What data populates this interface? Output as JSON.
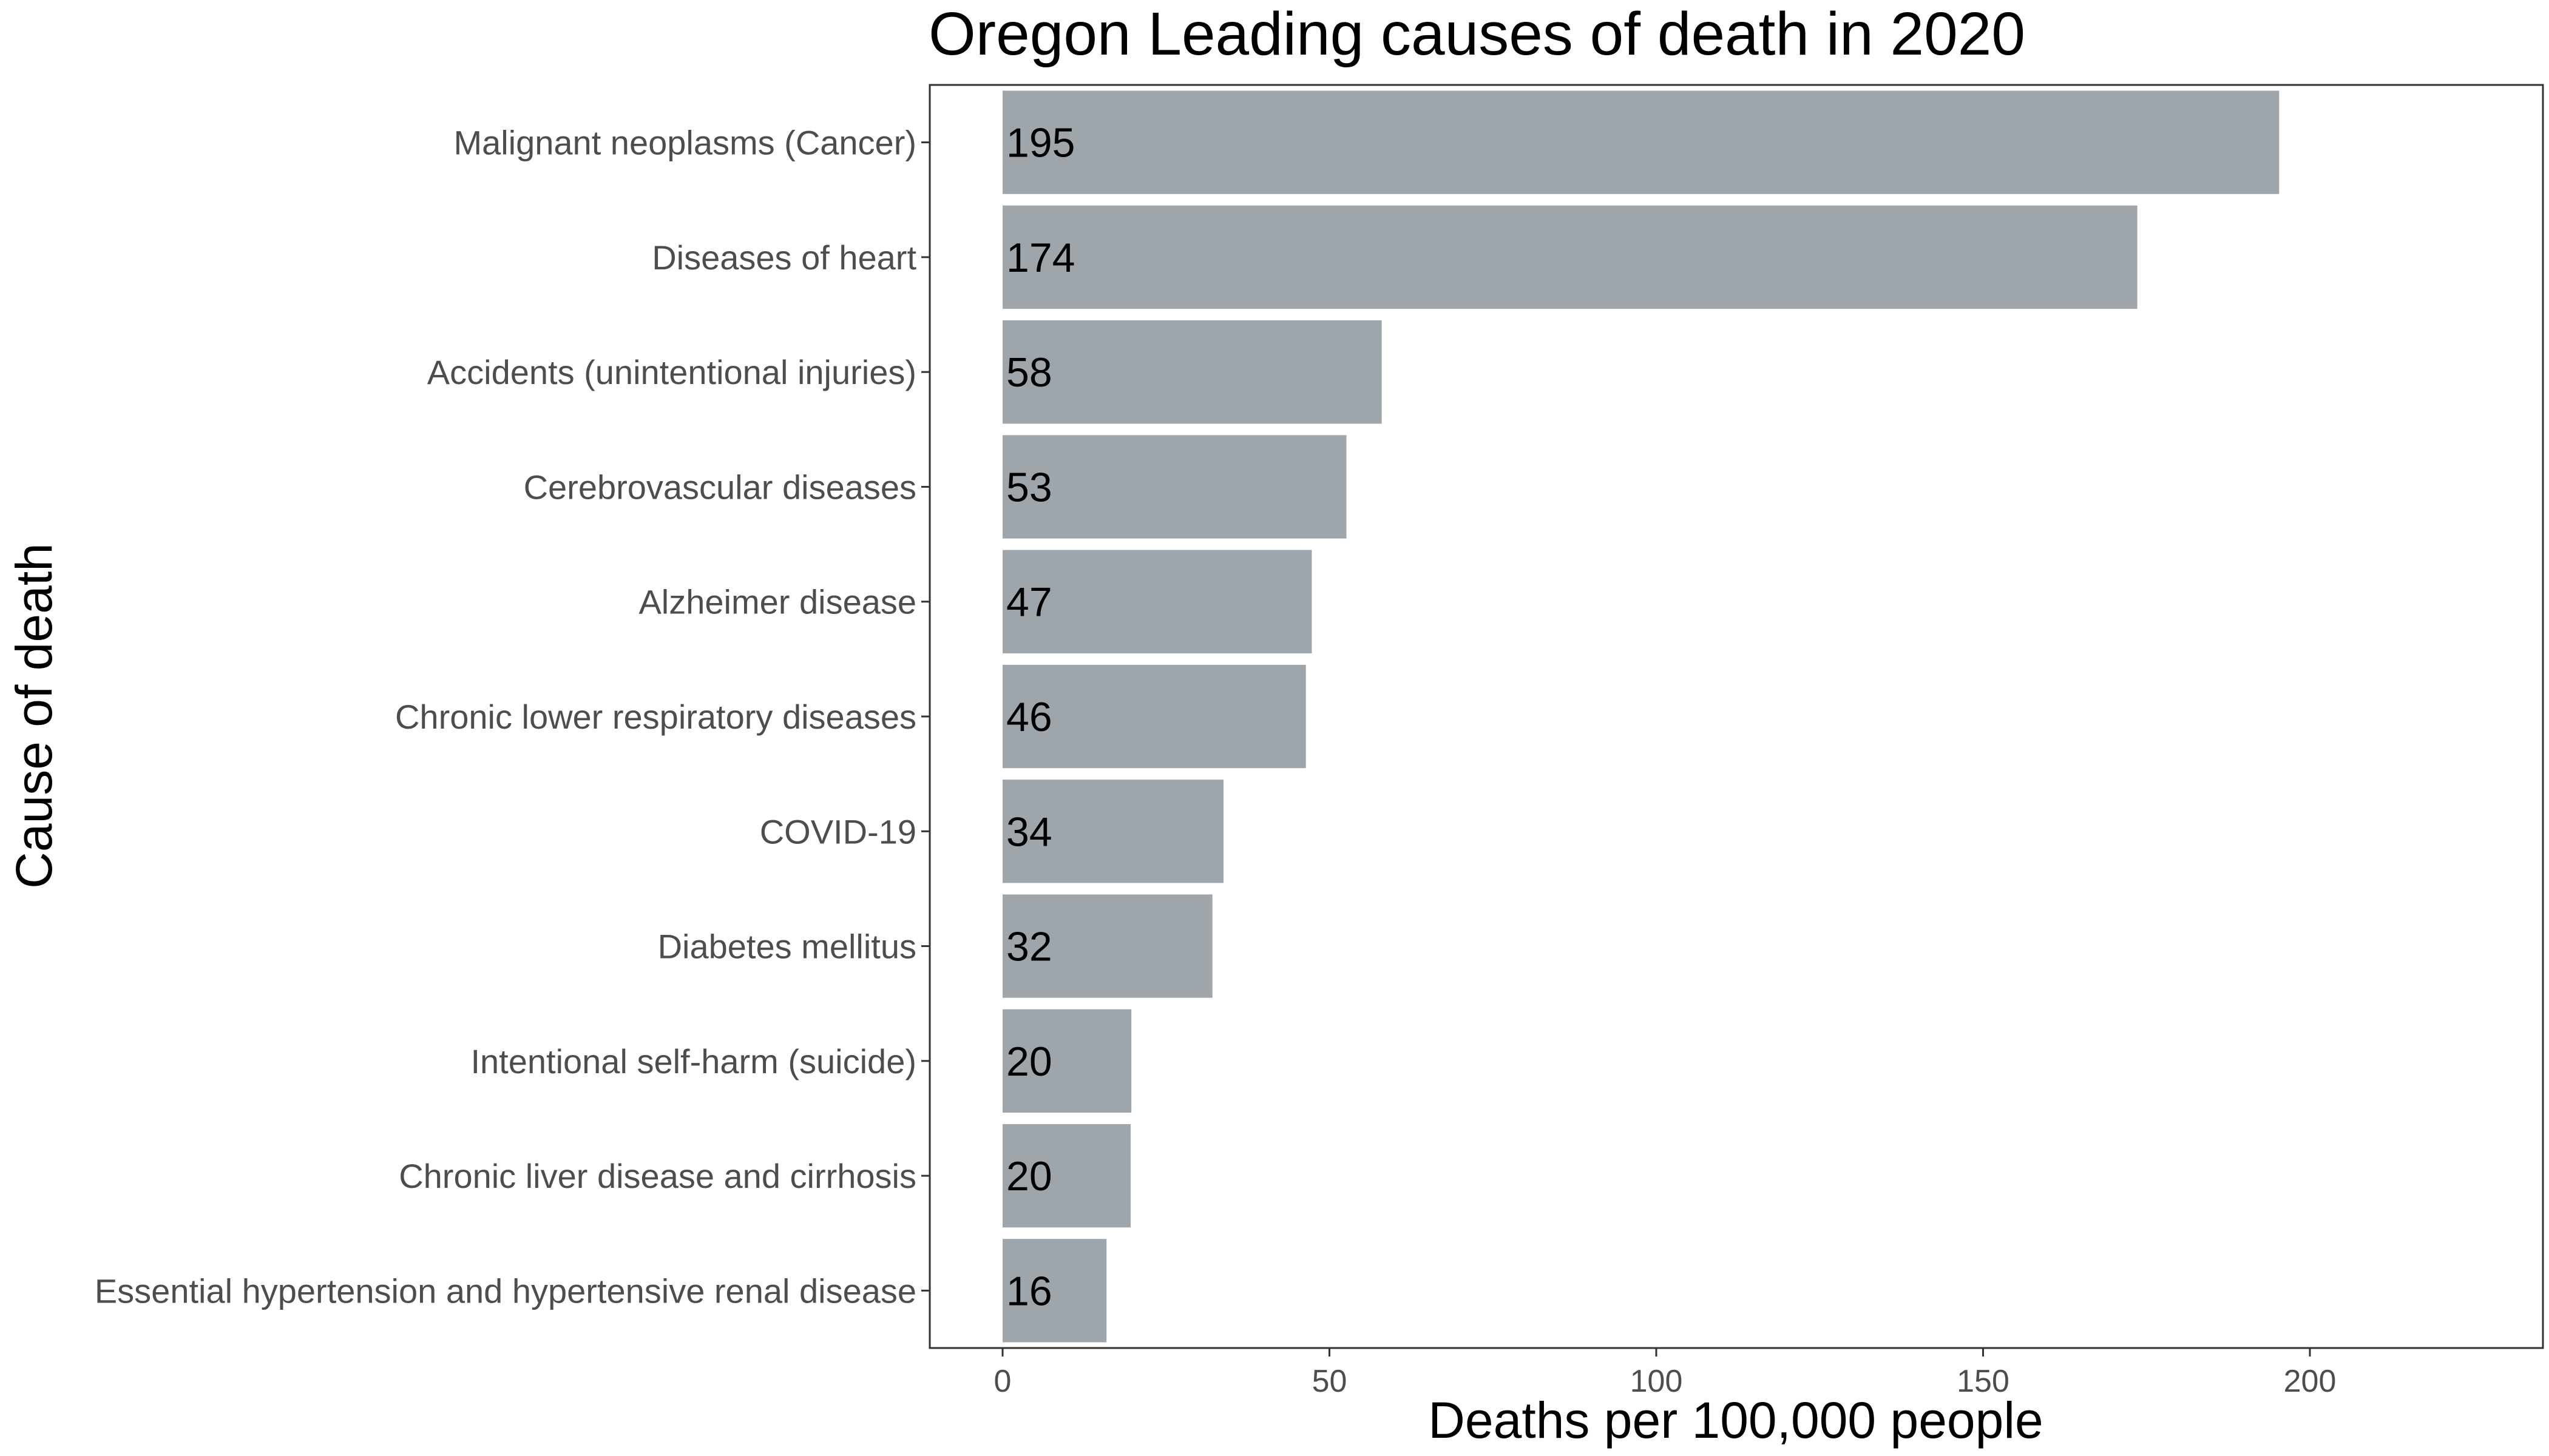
{
  "chart_data": {
    "type": "bar",
    "orientation": "horizontal",
    "title": "Oregon Leading causes of death in 2020",
    "xlabel": "Deaths per 100,000 people",
    "ylabel": "Cause of death",
    "xlim": [
      -11,
      236
    ],
    "ticks": [
      0,
      50,
      100,
      150,
      200
    ],
    "tick_labels": [
      "0",
      "50",
      "100",
      "150",
      "200"
    ],
    "grid": false,
    "legend": "none",
    "bar_color": "#9ea6ab",
    "categories": [
      "Malignant neoplasms (Cancer)",
      "Diseases of heart",
      "Accidents (unintentional injuries)",
      "Cerebrovascular diseases",
      "Alzheimer disease",
      "Chronic lower respiratory diseases",
      "COVID-19",
      "Diabetes mellitus",
      "Intentional self-harm (suicide)",
      "Chronic liver disease and cirrhosis",
      "Essential hypertension and hypertensive renal disease"
    ],
    "values": [
      195.3,
      173.6,
      58,
      52.6,
      47.3,
      46.4,
      33.8,
      32.1,
      19.7,
      19.6,
      15.9
    ],
    "data_labels": [
      "195",
      "174",
      "58",
      "53",
      "47",
      "46",
      "34",
      "32",
      "20",
      "20",
      "16"
    ]
  }
}
